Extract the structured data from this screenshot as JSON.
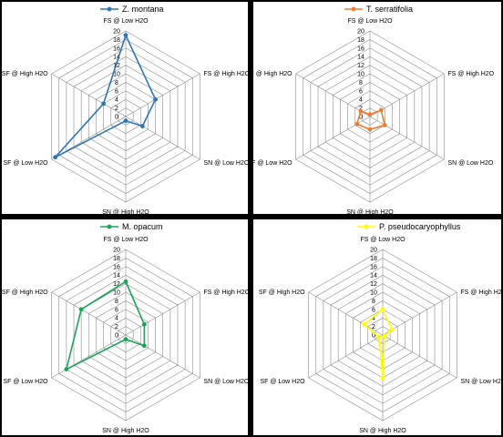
{
  "chart_data": [
    {
      "type": "radar",
      "axes": [
        "FS @ Low H2O",
        "FS @ High H2O",
        "SN @ Low H2O",
        "SN @ High H2O",
        "SF @ Low H2O",
        "SF @ High H2O"
      ],
      "ticks": [
        "0",
        "2",
        "4",
        "6",
        "8",
        "10",
        "12",
        "14",
        "16",
        "18",
        "20"
      ],
      "rlim": [
        0,
        20
      ],
      "series": [
        {
          "name": "Z. montana",
          "color": "#2e75b6",
          "values": [
            19,
            8,
            4.5,
            1,
            19,
            6
          ]
        }
      ]
    },
    {
      "type": "radar",
      "axes": [
        "FS @ Low H2O",
        "FS @ High H2O",
        "SN @ Low H2O",
        "SN @ High H2O",
        "SF @ Low H2O",
        "SF @ High H2O"
      ],
      "ticks": [
        "0",
        "2",
        "4",
        "6",
        "8",
        "10",
        "12",
        "14",
        "16",
        "18",
        "20"
      ],
      "rlim": [
        0,
        20
      ],
      "series": [
        {
          "name": "T. serratifolia",
          "color": "#ed7d31",
          "values": [
            0.5,
            3,
            4,
            3,
            3.5,
            2.5
          ]
        }
      ]
    },
    {
      "type": "radar",
      "axes": [
        "FS @ Low H2O",
        "FS @ High H2O",
        "SN @ Low H2O",
        "SN @ High H2O",
        "SF @ Low H2O",
        "SF @ High H2O"
      ],
      "ticks": [
        "0",
        "2",
        "4",
        "6",
        "8",
        "10",
        "12",
        "14",
        "16",
        "18",
        "20"
      ],
      "rlim": [
        0,
        20
      ],
      "series": [
        {
          "name": "M. opacum",
          "color": "#1aa55a",
          "values": [
            12.5,
            5,
            5,
            1,
            16,
            12
          ]
        }
      ]
    },
    {
      "type": "radar",
      "axes": [
        "FS @ Low H2O",
        "FS @ High H2O",
        "SN @ Low H2O",
        "SN @ High H2O",
        "SF @ Low H2O",
        "SF @ High H2O"
      ],
      "ticks": [
        "0",
        "2",
        "4",
        "6",
        "8",
        "10",
        "12",
        "14",
        "16",
        "18",
        "20"
      ],
      "rlim": [
        0,
        20
      ],
      "series": [
        {
          "name": "P. pseudocaryophyllus",
          "color": "#ffff00",
          "values": [
            6,
            2.5,
            0.5,
            10,
            1,
            5
          ]
        }
      ]
    }
  ]
}
